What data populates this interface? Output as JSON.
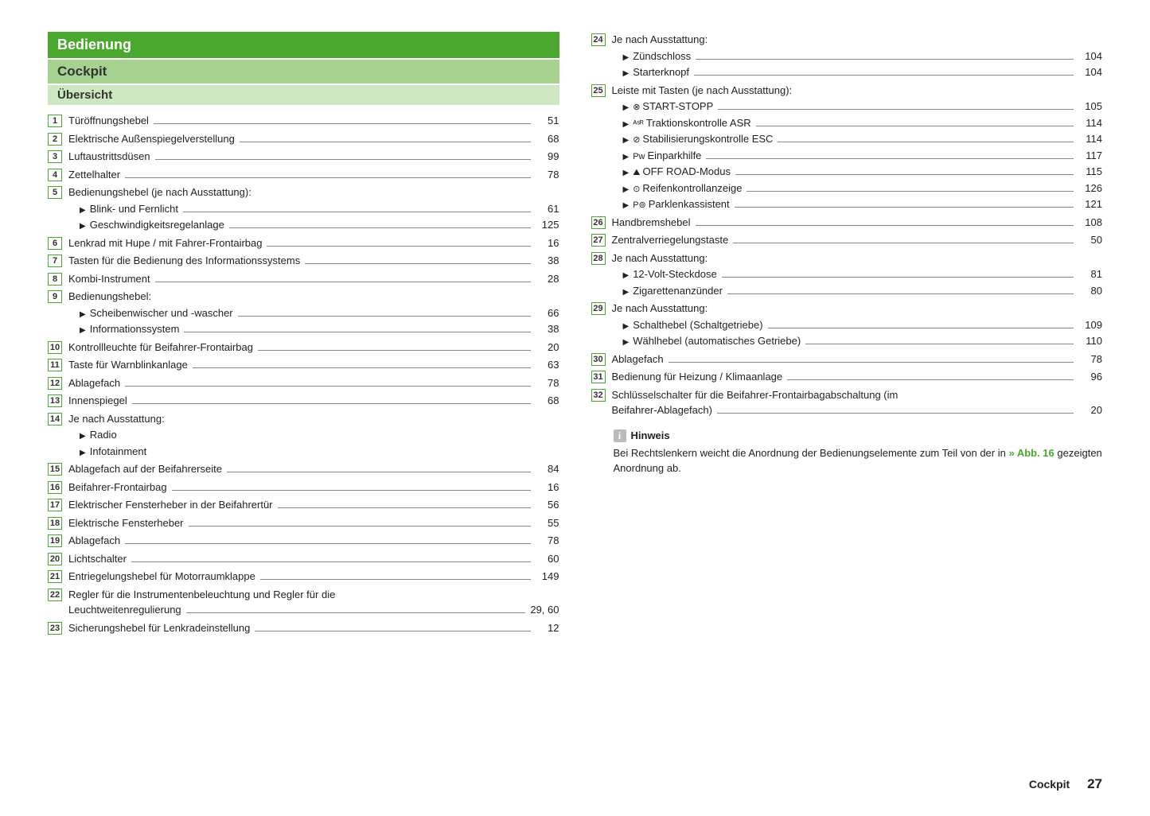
{
  "headers": {
    "main": "Bedienung",
    "sub": "Cockpit",
    "sub2": "Übersicht"
  },
  "leftItems": [
    {
      "n": "1",
      "type": "simple",
      "label": "Türöffnungshebel",
      "page": "51"
    },
    {
      "n": "2",
      "type": "simple",
      "label": "Elektrische Außenspiegelverstellung",
      "page": "68"
    },
    {
      "n": "3",
      "type": "simple",
      "label": "Luftaustrittsdüsen",
      "page": "99"
    },
    {
      "n": "4",
      "type": "simple",
      "label": "Zettelhalter",
      "page": "78"
    },
    {
      "n": "5",
      "type": "group",
      "label": "Bedienungshebel (je nach Ausstattung):",
      "subs": [
        {
          "label": "Blink- und Fernlicht",
          "page": "61"
        },
        {
          "label": "Geschwindigkeitsregelanlage",
          "page": "125"
        }
      ]
    },
    {
      "n": "6",
      "type": "simple",
      "label": "Lenkrad mit Hupe / mit Fahrer-Frontairbag",
      "page": "16"
    },
    {
      "n": "7",
      "type": "simple",
      "label": "Tasten für die Bedienung des Informationssystems",
      "page": "38"
    },
    {
      "n": "8",
      "type": "simple",
      "label": "Kombi-Instrument",
      "page": "28"
    },
    {
      "n": "9",
      "type": "group",
      "label": "Bedienungshebel:",
      "subs": [
        {
          "label": "Scheibenwischer und -wascher",
          "page": "66"
        },
        {
          "label": "Informationssystem",
          "page": "38"
        }
      ]
    },
    {
      "n": "10",
      "type": "simple",
      "label": "Kontrollleuchte für Beifahrer-Frontairbag",
      "page": "20"
    },
    {
      "n": "11",
      "type": "simple",
      "label": "Taste für Warnblinkanlage",
      "page": "63"
    },
    {
      "n": "12",
      "type": "simple",
      "label": "Ablagefach",
      "page": "78"
    },
    {
      "n": "13",
      "type": "simple",
      "label": "Innenspiegel",
      "page": "68"
    },
    {
      "n": "14",
      "type": "group",
      "label": "Je nach Ausstattung:",
      "subs": [
        {
          "label": "Radio",
          "page": ""
        },
        {
          "label": "Infotainment",
          "page": ""
        }
      ]
    },
    {
      "n": "15",
      "type": "simple",
      "label": "Ablagefach auf der Beifahrerseite",
      "page": "84"
    },
    {
      "n": "16",
      "type": "simple",
      "label": "Beifahrer-Frontairbag",
      "page": "16"
    },
    {
      "n": "17",
      "type": "simple",
      "label": "Elektrischer Fensterheber in der Beifahrertür",
      "page": "56"
    },
    {
      "n": "18",
      "type": "simple",
      "label": "Elektrische Fensterheber",
      "page": "55"
    },
    {
      "n": "19",
      "type": "simple",
      "label": "Ablagefach",
      "page": "78"
    },
    {
      "n": "20",
      "type": "simple",
      "label": "Lichtschalter",
      "page": "60"
    },
    {
      "n": "21",
      "type": "simple",
      "label": "Entriegelungshebel für Motorraumklappe",
      "page": "149"
    },
    {
      "n": "22",
      "type": "wrap",
      "label1": "Regler für die Instrumentenbeleuchtung und Regler für die",
      "label2": "Leuchtweitenregulierung",
      "page": "29, 60"
    },
    {
      "n": "23",
      "type": "simple",
      "label": "Sicherungshebel für Lenkradeinstellung",
      "page": "12"
    }
  ],
  "rightItems": [
    {
      "n": "24",
      "type": "group",
      "label": "Je nach Ausstattung:",
      "subs": [
        {
          "label": "Zündschloss",
          "page": "104"
        },
        {
          "label": "Starterknopf",
          "page": "104"
        }
      ]
    },
    {
      "n": "25",
      "type": "group",
      "label": "Leiste mit Tasten (je nach Ausstattung):",
      "subs": [
        {
          "icon": "⊗",
          "label": " START-STOPP",
          "page": "105"
        },
        {
          "icon": "ᴬˢᴿ",
          "label": " Traktionskontrolle ASR",
          "page": "114"
        },
        {
          "icon": "⊘",
          "label": " Stabilisierungskontrolle ESC",
          "page": "114"
        },
        {
          "icon": "Pᴡ",
          "label": " Einparkhilfe",
          "page": "117"
        },
        {
          "icon": "⛰",
          "label": " OFF ROAD-Modus",
          "page": "115"
        },
        {
          "icon": "⊙",
          "label": " Reifenkontrollanzeige",
          "page": "126"
        },
        {
          "icon": "P⊚",
          "label": " Parklenkassistent",
          "page": "121"
        }
      ]
    },
    {
      "n": "26",
      "type": "simple",
      "label": "Handbremshebel",
      "page": "108"
    },
    {
      "n": "27",
      "type": "simple",
      "label": "Zentralverriegelungstaste",
      "page": "50"
    },
    {
      "n": "28",
      "type": "group",
      "label": "Je nach Ausstattung:",
      "subs": [
        {
          "label": "12-Volt-Steckdose",
          "page": "81"
        },
        {
          "label": "Zigarettenanzünder",
          "page": "80"
        }
      ]
    },
    {
      "n": "29",
      "type": "group",
      "label": "Je nach Ausstattung:",
      "subs": [
        {
          "label": "Schalthebel (Schaltgetriebe)",
          "page": "109"
        },
        {
          "label": "Wählhebel (automatisches Getriebe)",
          "page": "110"
        }
      ]
    },
    {
      "n": "30",
      "type": "simple",
      "label": "Ablagefach",
      "page": "78"
    },
    {
      "n": "31",
      "type": "simple",
      "label": "Bedienung für Heizung / Klimaanlage",
      "page": "96"
    },
    {
      "n": "32",
      "type": "wrap",
      "label1": "Schlüsselschalter für die Beifahrer-Frontairbagabschaltung (im",
      "label2": "Beifahrer-Ablagefach)",
      "page": "20"
    }
  ],
  "hinweis": {
    "icon": "i",
    "title": "Hinweis",
    "body1": "Bei Rechtslenkern weicht die Anordnung der Bedienungselemente zum Teil von der in ",
    "ref": "» Abb. 16",
    "body2": " gezeigten Anordnung ab."
  },
  "footer": {
    "title": "Cockpit",
    "page": "27"
  }
}
